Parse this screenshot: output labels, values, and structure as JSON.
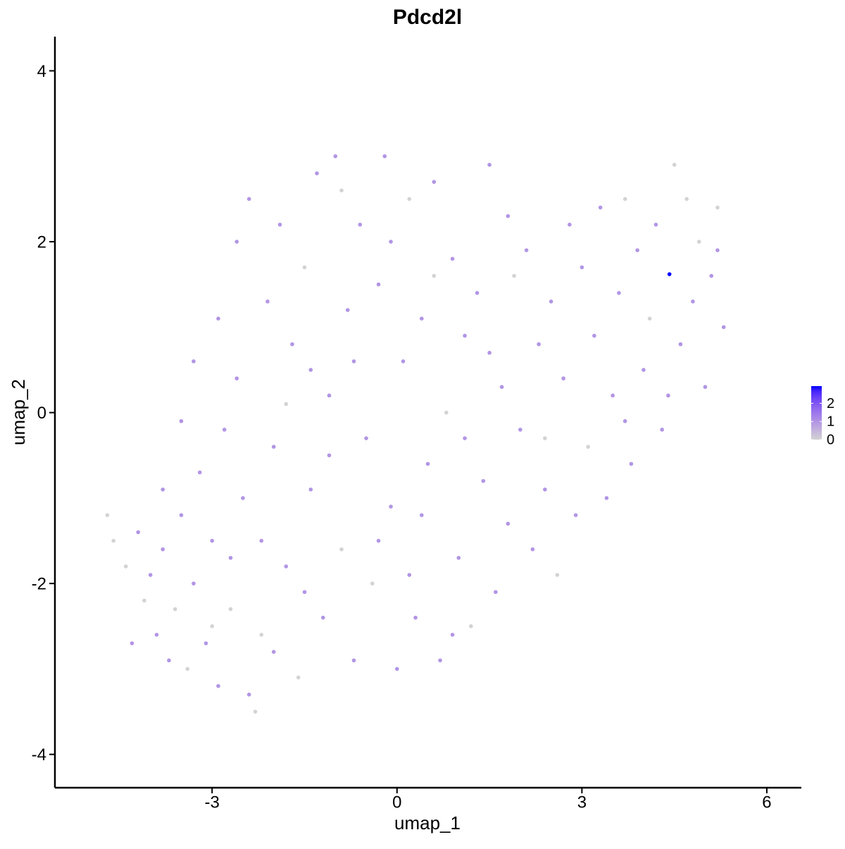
{
  "chart_data": {
    "type": "scatter",
    "title": "Pdcd2l",
    "x_label": "umap_1",
    "y_label": "umap_2",
    "x": [
      -4.7,
      -4.6,
      -4.4,
      -4.2,
      -4.1,
      -4.0,
      -3.9,
      -3.8,
      -3.7,
      -3.6,
      -3.5,
      -3.4,
      -3.3,
      -3.2,
      -3.1,
      -3.0,
      -2.9,
      -2.8,
      -2.7,
      -2.6,
      -2.5,
      -2.4,
      -2.3,
      -2.2,
      -2.1,
      -2.0,
      -1.9,
      -1.8,
      -1.7,
      -1.6,
      -1.5,
      -1.4,
      -1.3,
      -1.2,
      -1.1,
      -1.0,
      -0.9,
      -0.8,
      -0.7,
      -0.6,
      -0.5,
      -0.4,
      -0.3,
      -0.2,
      -0.1,
      0.0,
      0.1,
      0.2,
      0.3,
      0.4,
      0.5,
      0.6,
      0.7,
      0.8,
      0.9,
      1.0,
      1.1,
      1.2,
      1.3,
      1.4,
      1.5,
      1.6,
      1.7,
      1.8,
      1.9,
      2.0,
      2.1,
      2.2,
      2.3,
      2.4,
      2.5,
      2.6,
      2.7,
      2.8,
      2.9,
      3.0,
      3.1,
      3.2,
      3.3,
      3.4,
      3.5,
      3.6,
      3.7,
      3.8,
      3.9,
      4.0,
      4.1,
      4.2,
      4.3,
      4.42,
      4.5,
      4.6,
      4.7,
      4.8,
      4.9,
      5.0,
      5.1,
      5.2,
      5.3,
      -3.8,
      -3.3,
      -2.9,
      -2.6,
      -2.2,
      -1.8,
      -1.5,
      -1.1,
      -0.7,
      -0.3,
      0.2,
      0.6,
      1.1,
      0.4,
      -0.9,
      -2.4,
      -3.5,
      -4.3,
      -2.0,
      0.9,
      1.5,
      2.4,
      3.7,
      4.4,
      5.2,
      -1.4,
      -0.1,
      1.8,
      -2.7,
      -3.0
    ],
    "y": [
      -1.2,
      -1.5,
      -1.8,
      -1.4,
      -2.2,
      -1.9,
      -2.6,
      -1.6,
      -2.9,
      -2.3,
      -1.2,
      -3.0,
      -2.0,
      -0.7,
      -2.7,
      -1.5,
      -3.2,
      -0.2,
      -2.3,
      0.4,
      -1.0,
      -3.3,
      -3.5,
      -2.6,
      1.3,
      -0.4,
      2.2,
      -1.8,
      0.8,
      -3.1,
      1.7,
      -0.9,
      2.8,
      -2.4,
      0.2,
      3.0,
      -1.6,
      1.2,
      -2.9,
      2.2,
      -0.3,
      -2.0,
      1.5,
      3.0,
      -1.1,
      -3.0,
      0.6,
      2.5,
      -2.4,
      1.1,
      -0.6,
      2.7,
      -2.9,
      0.0,
      1.8,
      -1.7,
      0.9,
      -2.5,
      1.4,
      -0.8,
      2.9,
      -2.1,
      0.3,
      -1.3,
      1.6,
      -0.2,
      1.9,
      -1.6,
      0.8,
      -0.9,
      1.3,
      -1.9,
      0.4,
      2.2,
      -1.2,
      1.7,
      -0.4,
      0.9,
      2.4,
      -1.0,
      0.2,
      1.4,
      2.5,
      -0.6,
      1.9,
      0.5,
      1.1,
      2.2,
      -0.2,
      1.62,
      2.9,
      0.8,
      2.5,
      1.3,
      2.0,
      0.3,
      1.6,
      2.4,
      1.0,
      -0.9,
      0.6,
      1.1,
      2.0,
      -1.5,
      0.1,
      -2.1,
      -0.5,
      0.6,
      -1.5,
      -1.9,
      1.6,
      -0.3,
      -1.2,
      2.6,
      2.5,
      -0.1,
      -2.7,
      -2.8,
      -2.6,
      0.7,
      -0.3,
      -0.1,
      0.2,
      1.9,
      0.5,
      2.0,
      2.3,
      -1.7,
      -2.5
    ],
    "values": [
      0,
      0,
      0,
      1,
      0,
      1,
      1,
      1,
      1,
      0,
      1,
      0,
      1,
      1,
      1,
      1,
      1,
      1,
      0,
      1,
      1,
      1,
      0,
      0,
      1,
      1,
      1,
      1,
      1,
      0,
      0,
      1,
      1,
      1,
      1,
      1,
      0,
      1,
      1,
      1,
      1,
      0,
      1,
      1,
      1,
      1,
      1,
      0,
      1,
      1,
      1,
      1,
      1,
      0,
      1,
      1,
      1,
      0,
      1,
      1,
      1,
      1,
      1,
      1,
      0,
      1,
      1,
      1,
      1,
      1,
      1,
      0,
      1,
      1,
      1,
      1,
      0,
      1,
      1,
      1,
      1,
      1,
      0,
      1,
      1,
      1,
      0,
      1,
      1,
      2.95,
      0,
      1,
      0,
      1,
      0,
      1,
      1,
      0,
      1,
      1,
      1,
      1,
      1,
      1,
      0,
      1,
      1,
      1,
      1,
      1,
      0,
      1,
      1,
      0,
      1,
      1,
      1,
      1,
      1,
      1,
      0,
      1,
      1,
      1,
      1,
      1,
      1,
      1,
      0
    ],
    "xlim": [
      -5.55,
      6.56
    ],
    "ylim": [
      -4.39,
      4.4
    ],
    "xticks": [
      -3,
      0,
      3,
      6
    ],
    "yticks": [
      -4,
      -2,
      0,
      2,
      4
    ],
    "colors": [
      "#d3d3d3",
      "#0000ff"
    ],
    "clim": [
      0,
      2.95
    ],
    "cticks": [
      0,
      1,
      2
    ],
    "legend": "right"
  }
}
